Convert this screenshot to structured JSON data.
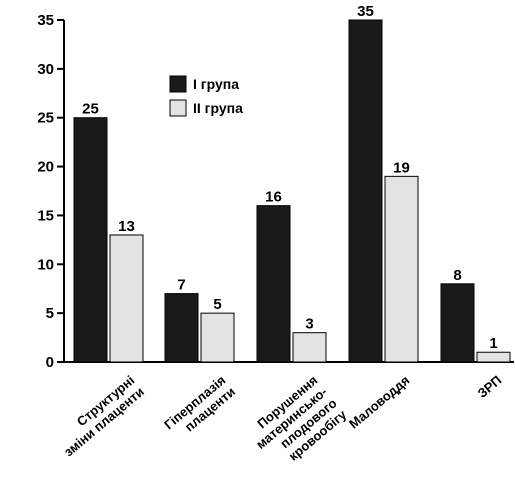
{
  "chart_data": {
    "type": "bar",
    "categories": [
      [
        "Структурні",
        "зміни плаценти"
      ],
      [
        "Гіперплазія",
        "плаценти"
      ],
      [
        "Порушення",
        "материнсько-",
        "плодового",
        "кровообігу"
      ],
      [
        "Маловоддя"
      ],
      [
        "ЗРП"
      ]
    ],
    "series": [
      {
        "name": "I група",
        "color": "#1a1a1a",
        "values": [
          25,
          7,
          16,
          35,
          8
        ]
      },
      {
        "name": "II група",
        "color": "#e3e3e3",
        "values": [
          13,
          5,
          3,
          19,
          1
        ]
      }
    ],
    "yticks": [
      0,
      5,
      10,
      15,
      20,
      25,
      30,
      35
    ],
    "ylim": [
      0,
      35
    ],
    "grid": false,
    "legend_position": "top-center"
  }
}
